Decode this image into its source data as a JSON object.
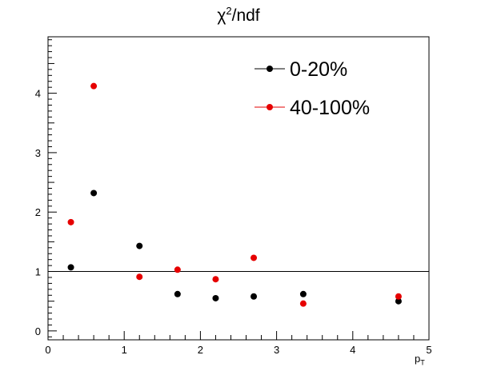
{
  "chart_data": {
    "type": "scatter",
    "title": "χ²/ndf",
    "title_parts": {
      "base": "χ",
      "sup": "2",
      "rest": "/ndf"
    },
    "xlabel": "p_T",
    "xlabel_parts": {
      "base": "p",
      "sub": "T"
    },
    "ylabel": "",
    "xlim": [
      0,
      5
    ],
    "ylim": [
      -0.15,
      4.95
    ],
    "xticks": [
      0,
      1,
      2,
      3,
      4,
      5
    ],
    "yticks": [
      0,
      1,
      2,
      3,
      4
    ],
    "grid": false,
    "legend_position": "top-right",
    "reference_line": {
      "y": 1
    },
    "series": [
      {
        "name": "0-20%",
        "color": "#000000",
        "x": [
          0.3,
          0.6,
          1.2,
          1.7,
          2.2,
          2.7,
          3.35,
          4.6
        ],
        "y": [
          1.07,
          2.32,
          1.43,
          0.62,
          0.55,
          0.58,
          0.62,
          0.5
        ]
      },
      {
        "name": "40-100%",
        "color": "#e60000",
        "x": [
          0.3,
          0.6,
          1.2,
          1.7,
          2.2,
          2.7,
          3.35,
          4.6
        ],
        "y": [
          1.83,
          4.12,
          0.91,
          1.03,
          0.87,
          1.23,
          0.46,
          0.58
        ]
      }
    ]
  }
}
